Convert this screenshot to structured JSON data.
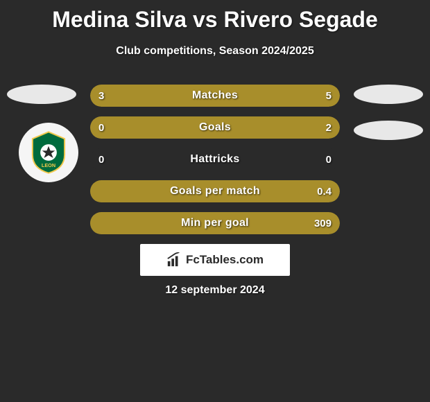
{
  "title": "Medina Silva vs Rivero Segade",
  "subtitle": "Club competitions, Season 2024/2025",
  "colors": {
    "left_fill": "#a88e2b",
    "right_fill": "#a88e2b",
    "track": "#2a2a2a",
    "background": "#2a2a2a",
    "text": "#ffffff",
    "shadow": "rgba(0,0,0,0.7)"
  },
  "bars": [
    {
      "label": "Matches",
      "left": "3",
      "right": "5",
      "left_pct": 37.5,
      "right_pct": 62.5
    },
    {
      "label": "Goals",
      "left": "0",
      "right": "2",
      "left_pct": 0,
      "right_pct": 100
    },
    {
      "label": "Hattricks",
      "left": "0",
      "right": "0",
      "left_pct": 0,
      "right_pct": 0
    },
    {
      "label": "Goals per match",
      "left": "",
      "right": "0.4",
      "left_pct": 0,
      "right_pct": 100
    },
    {
      "label": "Min per goal",
      "left": "",
      "right": "309",
      "left_pct": 0,
      "right_pct": 100
    }
  ],
  "footer_brand": "FcTables.com",
  "date": "12 september 2024",
  "club_badge": {
    "bg": "#006b3d",
    "accent": "#f2c94c",
    "ball": "#ffffff"
  }
}
